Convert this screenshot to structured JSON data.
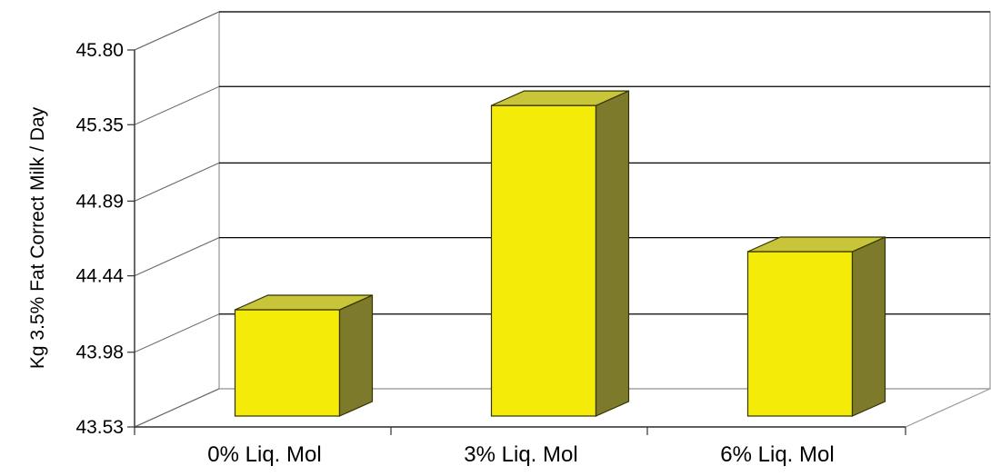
{
  "chart_data": {
    "type": "bar",
    "style": "3d-column",
    "categories": [
      "0% Liq. Mol",
      "3% Liq. Mol",
      "6% Liq. Mol"
    ],
    "values": [
      44.17,
      45.4,
      44.52
    ],
    "title": "",
    "xlabel": "",
    "ylabel": "Kg 3.5% Fat Correct Milk / Day",
    "yticks": [
      "43.53",
      "43.98",
      "44.44",
      "44.89",
      "45.35",
      "45.80"
    ],
    "ylim": [
      43.53,
      45.8
    ],
    "grid": true,
    "legend": "none",
    "colors": {
      "bar_front": "#F5EB08",
      "bar_top": "#C9C53A",
      "bar_side": "#7D7A2C",
      "bar_outline": "#333300",
      "grid": "#000000",
      "wall_edge": "#999999"
    }
  }
}
